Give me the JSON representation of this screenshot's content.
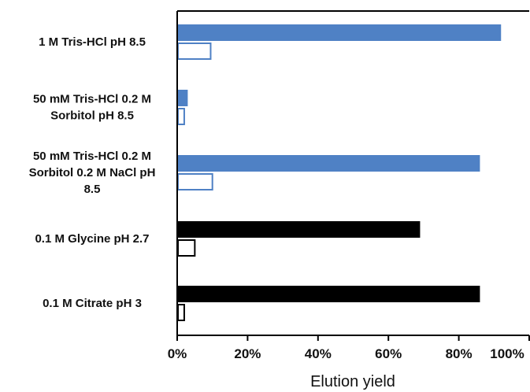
{
  "chart_data": {
    "type": "bar",
    "orientation": "horizontal",
    "title": "",
    "xlabel": "Elution yield",
    "ylabel": "",
    "xlim": [
      0,
      100
    ],
    "xticks": [
      "0%",
      "20%",
      "40%",
      "60%",
      "80%",
      "100%"
    ],
    "grid": false,
    "legend": "none",
    "categories": [
      {
        "lines": [
          "1 M Tris-HCl pH 8.5"
        ]
      },
      {
        "lines": [
          "50 mM Tris-HCl 0.2 M",
          "Sorbitol pH 8.5"
        ]
      },
      {
        "lines": [
          "50 mM Tris-HCl 0.2 M",
          "Sorbitol 0.2 M NaCl pH",
          "8.5"
        ]
      },
      {
        "lines": [
          "0.1 M Glycine pH 2.7"
        ]
      },
      {
        "lines": [
          "0.1 M Citrate pH 3"
        ]
      }
    ],
    "series": [
      {
        "values": [
          92,
          3,
          86,
          69,
          86
        ],
        "fill_colors": [
          "#4f81c5",
          "#4f81c5",
          "#4f81c5",
          "#000000",
          "#000000"
        ]
      },
      {
        "values": [
          9.5,
          2,
          10,
          5,
          2
        ],
        "stroke_colors": [
          "#4f81c5",
          "#4f81c5",
          "#4f81c5",
          "#000000",
          "#000000"
        ]
      }
    ]
  }
}
